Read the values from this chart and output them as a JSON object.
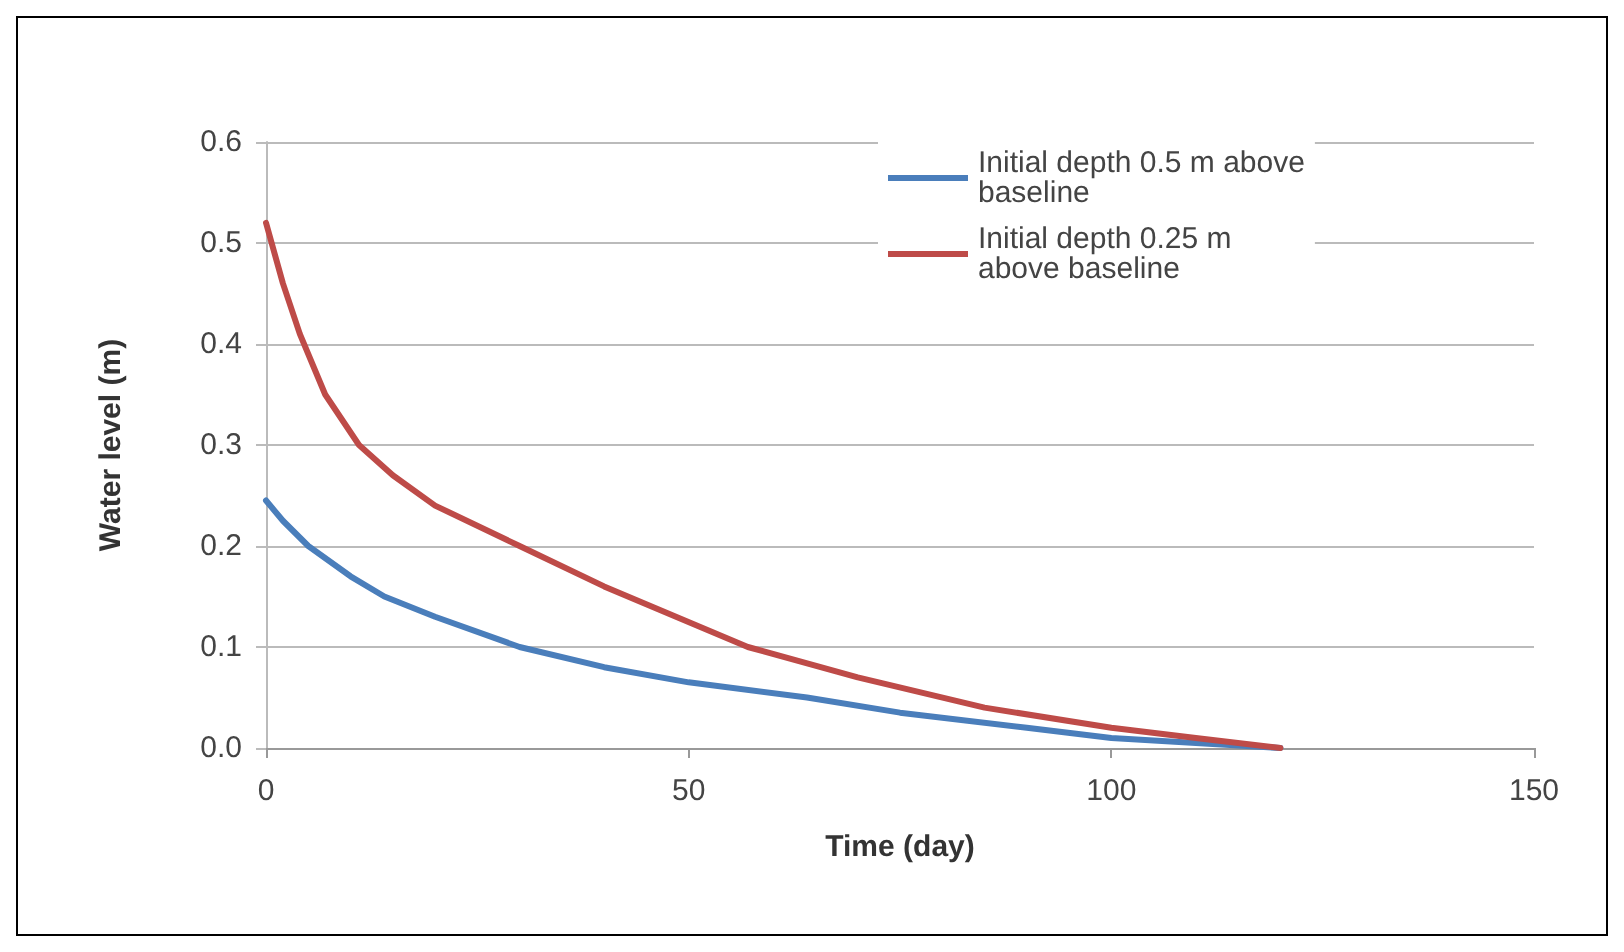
{
  "chart_data": {
    "type": "line",
    "xlabel": "Time (day)",
    "ylabel": "Water level (m)",
    "xlim": [
      0,
      150
    ],
    "xticks": [
      0,
      50,
      100,
      150
    ],
    "ylim": [
      0,
      0.6
    ],
    "yticks": [
      {
        "value": 0,
        "label": "0.0"
      },
      0.1,
      0.2,
      0.3,
      0.4,
      0.5,
      0.6
    ],
    "grid": "y",
    "legend": "top right",
    "marker": "none",
    "line_style": "solid",
    "series": [
      {
        "name": "Initial depth 0.5 m above baseline",
        "color": "#4a7ebb",
        "x": [
          0,
          2,
          5,
          10,
          14,
          20,
          30,
          40,
          50,
          64,
          75,
          90,
          100,
          110,
          120
        ],
        "values": [
          0.245,
          0.225,
          0.2,
          0.17,
          0.15,
          0.13,
          0.1,
          0.08,
          0.065,
          0.05,
          0.035,
          0.02,
          0.01,
          0.005,
          0
        ]
      },
      {
        "name": "Initial depth 0.25 m above baseline",
        "color": "#be4b48",
        "x": [
          0,
          2,
          4,
          7,
          11,
          15,
          20,
          30,
          40,
          57,
          70,
          85,
          100,
          110,
          120
        ],
        "values": [
          0.52,
          0.46,
          0.41,
          0.35,
          0.3,
          0.27,
          0.24,
          0.2,
          0.16,
          0.1,
          0.07,
          0.04,
          0.02,
          0.01,
          0
        ]
      }
    ]
  }
}
